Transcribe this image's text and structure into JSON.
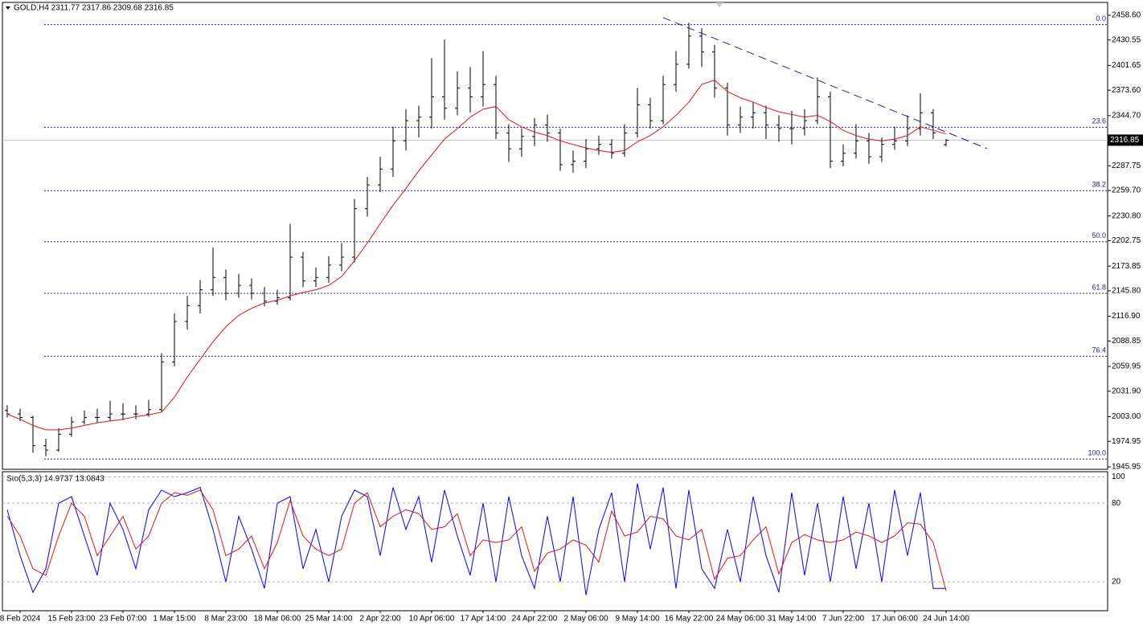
{
  "chart_data": {
    "type": "ohlc",
    "header": "GOLD,H4  2311.77 2317.86 2309.68 2316.85",
    "bar_color": "#000000",
    "categories": [
      null,
      "8 Feb 2024",
      null,
      null,
      null,
      "15 Feb 23:00",
      null,
      null,
      null,
      "23 Feb 07:00",
      null,
      null,
      null,
      "1 Mar 15:00",
      null,
      null,
      null,
      "8 Mar 23:00",
      null,
      null,
      null,
      "18 Mar 06:00",
      null,
      null,
      null,
      "25 Mar 14:00",
      null,
      null,
      null,
      "2 Apr 22:00",
      null,
      null,
      null,
      "10 Apr 06:00",
      null,
      null,
      null,
      "17 Apr 14:00",
      null,
      null,
      null,
      "24 Apr 22:00",
      null,
      null,
      null,
      "2 May 06:00",
      null,
      null,
      null,
      "9 May 14:00",
      null,
      null,
      null,
      "16 May 22:00",
      null,
      null,
      null,
      "24 May 06:00",
      null,
      null,
      null,
      "31 May 14:00",
      null,
      null,
      null,
      "7 Jun 22:00",
      null,
      null,
      null,
      "17 Jun 06:00",
      null,
      null,
      null,
      "24 Jun 14:00"
    ],
    "ohlc": [
      [
        2010,
        2016,
        2002,
        2006
      ],
      [
        2006,
        2012,
        1998,
        2002
      ],
      [
        2002,
        2004,
        1962,
        1970
      ],
      [
        1970,
        1978,
        1958,
        1965
      ],
      [
        1965,
        1990,
        1963,
        1983
      ],
      [
        1983,
        2003,
        1980,
        1997
      ],
      [
        1997,
        2010,
        1994,
        2002
      ],
      [
        2002,
        2012,
        1996,
        2002
      ],
      [
        2002,
        2021,
        1998,
        2006
      ],
      [
        2006,
        2018,
        1999,
        2006
      ],
      [
        2006,
        2016,
        2000,
        2006
      ],
      [
        2006,
        2022,
        2003,
        2011
      ],
      [
        2011,
        2075,
        2008,
        2065
      ],
      [
        2065,
        2120,
        2060,
        2111
      ],
      [
        2111,
        2140,
        2102,
        2129
      ],
      [
        2129,
        2158,
        2120,
        2147
      ],
      [
        2147,
        2195,
        2140,
        2161
      ],
      [
        2161,
        2170,
        2135,
        2143
      ],
      [
        2143,
        2165,
        2138,
        2152
      ],
      [
        2152,
        2160,
        2136,
        2143
      ],
      [
        2143,
        2150,
        2128,
        2134
      ],
      [
        2134,
        2147,
        2130,
        2138
      ],
      [
        2138,
        2222,
        2135,
        2184
      ],
      [
        2184,
        2190,
        2150,
        2157
      ],
      [
        2157,
        2172,
        2150,
        2161
      ],
      [
        2161,
        2185,
        2155,
        2175
      ],
      [
        2175,
        2200,
        2168,
        2184
      ],
      [
        2184,
        2250,
        2178,
        2239
      ],
      [
        2239,
        2275,
        2230,
        2266
      ],
      [
        2266,
        2298,
        2258,
        2284
      ],
      [
        2284,
        2332,
        2275,
        2316
      ],
      [
        2316,
        2352,
        2305,
        2339
      ],
      [
        2339,
        2356,
        2320,
        2343
      ],
      [
        2343,
        2410,
        2330,
        2366
      ],
      [
        2366,
        2431,
        2340,
        2353
      ],
      [
        2353,
        2395,
        2345,
        2376
      ],
      [
        2376,
        2400,
        2348,
        2366
      ],
      [
        2366,
        2418,
        2355,
        2380
      ],
      [
        2380,
        2390,
        2318,
        2325
      ],
      [
        2325,
        2335,
        2292,
        2307
      ],
      [
        2307,
        2330,
        2298,
        2321
      ],
      [
        2321,
        2342,
        2310,
        2334
      ],
      [
        2334,
        2346,
        2315,
        2325
      ],
      [
        2325,
        2330,
        2282,
        2289
      ],
      [
        2289,
        2305,
        2280,
        2293
      ],
      [
        2293,
        2318,
        2285,
        2307
      ],
      [
        2307,
        2322,
        2300,
        2312
      ],
      [
        2312,
        2318,
        2296,
        2302
      ],
      [
        2302,
        2335,
        2298,
        2325
      ],
      [
        2325,
        2376,
        2320,
        2357
      ],
      [
        2357,
        2365,
        2330,
        2339
      ],
      [
        2339,
        2390,
        2335,
        2380
      ],
      [
        2380,
        2418,
        2372,
        2403
      ],
      [
        2403,
        2450,
        2398,
        2435
      ],
      [
        2435,
        2444,
        2400,
        2417
      ],
      [
        2417,
        2425,
        2365,
        2376
      ],
      [
        2376,
        2382,
        2322,
        2334
      ],
      [
        2334,
        2355,
        2325,
        2343
      ],
      [
        2343,
        2360,
        2330,
        2348
      ],
      [
        2348,
        2356,
        2318,
        2334
      ],
      [
        2334,
        2345,
        2315,
        2330
      ],
      [
        2330,
        2350,
        2312,
        2330
      ],
      [
        2330,
        2352,
        2322,
        2339
      ],
      [
        2339,
        2388,
        2335,
        2366
      ],
      [
        2366,
        2372,
        2285,
        2293
      ],
      [
        2293,
        2312,
        2287,
        2302
      ],
      [
        2302,
        2335,
        2296,
        2316
      ],
      [
        2316,
        2325,
        2290,
        2298
      ],
      [
        2298,
        2320,
        2292,
        2312
      ],
      [
        2312,
        2332,
        2306,
        2316
      ],
      [
        2316,
        2345,
        2310,
        2330
      ],
      [
        2330,
        2370,
        2322,
        2348
      ],
      [
        2348,
        2352,
        2318,
        2325
      ],
      [
        2311.77,
        2317.86,
        2309.68,
        2316.85
      ]
    ],
    "ma": {
      "color": "#e0141a",
      "values": [
        2006,
        2000,
        1993,
        1988,
        1988,
        1990,
        1993,
        1996,
        1998,
        2000,
        2003,
        2005,
        2008,
        2025,
        2048,
        2068,
        2088,
        2105,
        2118,
        2126,
        2132,
        2135,
        2140,
        2144,
        2147,
        2152,
        2162,
        2180,
        2200,
        2222,
        2243,
        2262,
        2282,
        2300,
        2318,
        2330,
        2343,
        2352,
        2355,
        2340,
        2332,
        2326,
        2322,
        2316,
        2312,
        2308,
        2305,
        2303,
        2305,
        2315,
        2322,
        2332,
        2345,
        2360,
        2380,
        2385,
        2372,
        2365,
        2360,
        2354,
        2349,
        2346,
        2343,
        2345,
        2338,
        2328,
        2322,
        2318,
        2316,
        2318,
        2322,
        2332,
        2328,
        2324
      ]
    },
    "ylim": [
      1943.2,
      2473.2
    ],
    "yticks": [
      {
        "value": 2458.6,
        "label": "2458.60"
      },
      2430.55,
      2401.65,
      {
        "value": 2373.6,
        "label": "2373.60"
      },
      {
        "value": 2344.7,
        "label": "2344.70"
      },
      2287.75,
      {
        "value": 2259.7,
        "label": "2259.70"
      },
      {
        "value": 2230.8,
        "label": "2230.80"
      },
      2202.75,
      2173.85,
      {
        "value": 2145.8,
        "label": "2145.80"
      },
      {
        "value": 2116.9,
        "label": "2116.90"
      },
      2088.85,
      2059.95,
      {
        "value": 2031.9,
        "label": "2031.90"
      },
      {
        "value": 2003.0,
        "label": "2003.00"
      },
      1974.95,
      1945.95
    ],
    "current_price": 2316.85,
    "fib_levels": [
      {
        "value": 2448,
        "label": "0.0"
      },
      {
        "value": 2331.5,
        "label": "23.6"
      },
      {
        "value": 2259.5,
        "label": "38.2"
      },
      {
        "value": 2201.5,
        "label": "50.0"
      },
      {
        "value": 2143,
        "label": "61.8"
      },
      {
        "value": 2071.5,
        "label": "76.4"
      },
      {
        "value": 1955,
        "label": "100.0"
      }
    ],
    "trendline": {
      "x": [
        51,
        76.2
      ],
      "y": [
        2455.9,
        2307.2
      ],
      "color": "#1c1c9c"
    },
    "stochastic": {
      "label": "Sto(5,3,3) 14.9737 13.0843",
      "ylim": [
        -2,
        104
      ],
      "yticks": [
        100,
        80,
        20
      ],
      "series": [
        {
          "color": "#0000ff",
          "values": [
            75,
            40,
            12,
            30,
            80,
            85,
            55,
            25,
            80,
            60,
            30,
            75,
            90,
            85,
            88,
            92,
            60,
            20,
            70,
            45,
            15,
            80,
            85,
            30,
            60,
            20,
            70,
            90,
            85,
            40,
            92,
            60,
            85,
            35,
            90,
            55,
            25,
            80,
            20,
            85,
            40,
            15,
            70,
            20,
            85,
            10,
            60,
            88,
            20,
            95,
            45,
            92,
            15,
            90,
            30,
            15,
            60,
            20,
            85,
            40,
            12,
            88,
            25,
            80,
            20,
            85,
            30,
            80,
            20,
            90,
            40,
            88,
            15,
            14.9737
          ]
        },
        {
          "color": "#e0141a",
          "values": [
            70,
            55,
            30,
            25,
            55,
            80,
            70,
            40,
            55,
            70,
            45,
            55,
            80,
            88,
            86,
            90,
            75,
            40,
            45,
            55,
            30,
            50,
            82,
            55,
            45,
            40,
            45,
            80,
            88,
            62,
            70,
            75,
            72,
            60,
            62,
            72,
            40,
            52,
            50,
            52,
            62,
            28,
            42,
            45,
            52,
            48,
            35,
            74,
            55,
            58,
            70,
            68,
            55,
            52,
            60,
            22,
            38,
            40,
            52,
            62,
            26,
            50,
            56,
            52,
            50,
            52,
            58,
            55,
            50,
            55,
            65,
            64,
            50,
            13.0843
          ]
        }
      ]
    }
  }
}
